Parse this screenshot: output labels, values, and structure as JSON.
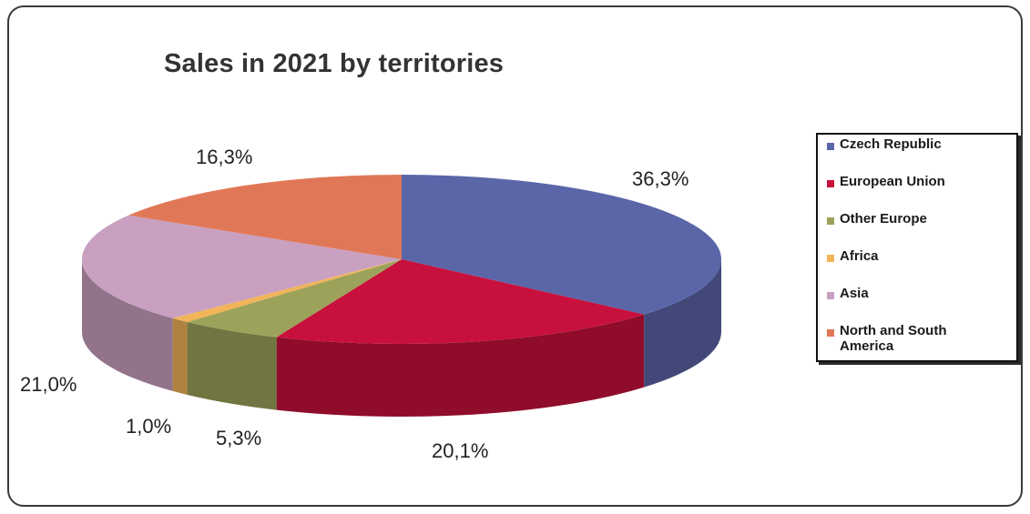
{
  "chart_data": {
    "type": "pie",
    "title": "Sales in 2021 by territories",
    "style": "3d",
    "legend_position": "right",
    "slices": [
      {
        "name": "Czech Republic",
        "value": 36.3,
        "label": "36,3%",
        "color": "#5b66a8"
      },
      {
        "name": "European Union",
        "value": 20.1,
        "label": "20,1%",
        "color": "#c8103c"
      },
      {
        "name": "Other Europe",
        "value": 5.3,
        "label": "5,3%",
        "color": "#9da25a"
      },
      {
        "name": "Africa",
        "value": 1.0,
        "label": "1,0%",
        "color": "#f2b458"
      },
      {
        "name": "Asia",
        "value": 21.0,
        "label": "21,0%",
        "color": "#c9a0c0"
      },
      {
        "name": "North and South America",
        "value": 16.3,
        "label": "16,3%",
        "color": "#e07858"
      }
    ]
  }
}
